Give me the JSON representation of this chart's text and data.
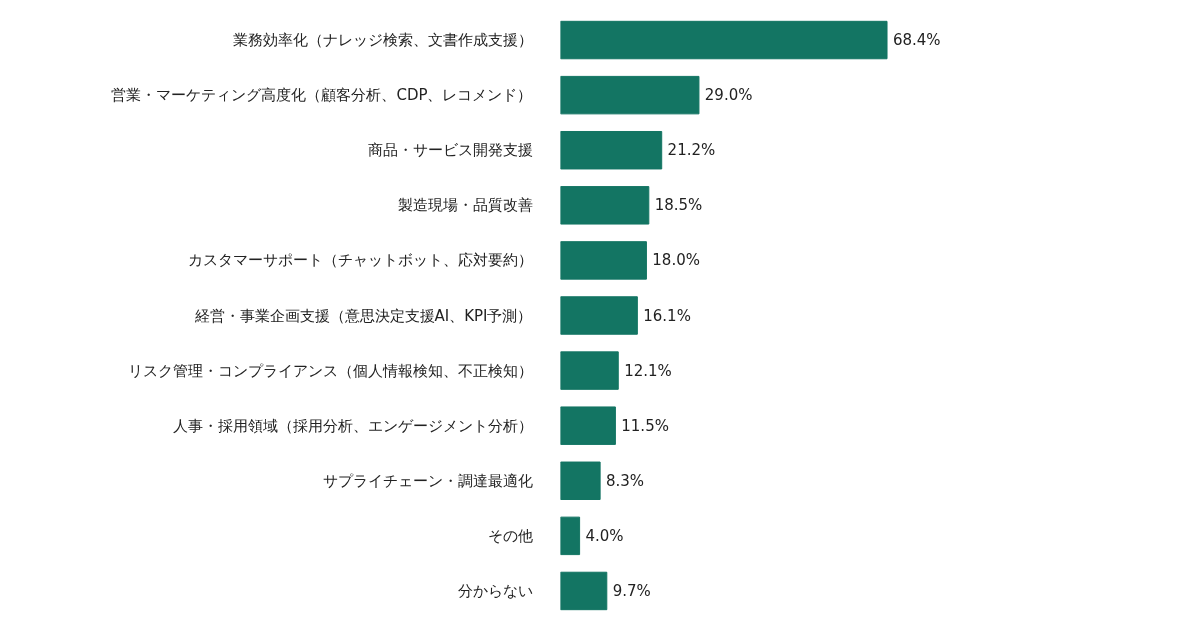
{
  "chart_data": {
    "type": "bar",
    "orientation": "horizontal",
    "categories": [
      "業務効率化（ナレッジ検索、文書作成支援）",
      "営業・マーケティング高度化（顧客分析、CDP、レコメンド）",
      "商品・サービス開発支援",
      "製造現場・品質改善",
      "カスタマーサポート（チャットボット、応対要約）",
      "経営・事業企画支援（意思決定支援AI、KPI予測）",
      "リスク管理・コンプライアンス（個人情報検知、不正検知）",
      "人事・採用領域（採用分析、エンゲージメント分析）",
      "サプライチェーン・調達最適化",
      "その他",
      "分からない"
    ],
    "values": [
      68.4,
      29.0,
      21.2,
      18.5,
      18.0,
      16.1,
      12.1,
      11.5,
      8.3,
      4.0,
      9.7
    ],
    "value_labels": [
      "68.4%",
      "29.0%",
      "21.2%",
      "18.5%",
      "18.0%",
      "16.1%",
      "12.1%",
      "11.5%",
      "8.3%",
      "4.0%",
      "9.7%"
    ],
    "color": "#137563"
  }
}
